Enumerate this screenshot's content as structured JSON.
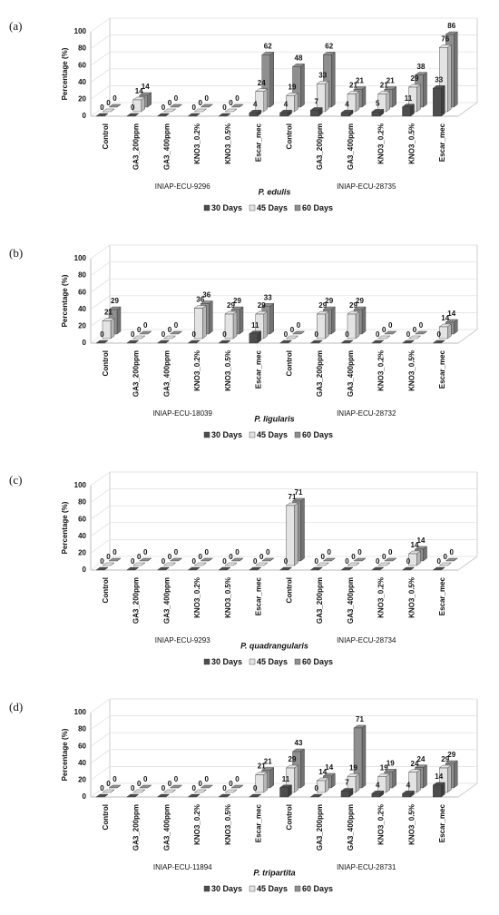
{
  "chart_data": [
    {
      "type": "bar",
      "panel_label": "(a)",
      "ylabel": "Percentage (%)",
      "categories": [
        "Control",
        "GA3_200ppm",
        "GA3_400ppm",
        "KNO3_0.2%",
        "KNO3_0.5%",
        "Escar_mec",
        "Control",
        "GA3_200ppm",
        "GA3_400ppm",
        "KNO3_0.2%",
        "KNO3_0.5%",
        "Escar_mec"
      ],
      "groups": [
        "INIAP-ECU-9296",
        "INIAP-ECU-28735"
      ],
      "species": "P. edulis",
      "ylim": [
        0,
        100
      ],
      "yticks": [
        0,
        20,
        40,
        60,
        80,
        100
      ],
      "series": [
        {
          "name": "30 Days",
          "color": "#4d4d4d",
          "values": [
            0,
            0,
            0,
            0,
            0,
            4,
            4,
            7,
            4,
            5,
            11,
            33
          ]
        },
        {
          "name": "45 Days",
          "color": "#e3e3e3",
          "values": [
            0,
            14,
            0,
            0,
            0,
            24,
            19,
            33,
            21,
            21,
            29,
            76
          ]
        },
        {
          "name": "60 Days",
          "color": "#8f8f8f",
          "values": [
            0,
            14,
            0,
            0,
            0,
            62,
            48,
            62,
            21,
            21,
            38,
            86
          ]
        }
      ]
    },
    {
      "type": "bar",
      "panel_label": "(b)",
      "ylabel": "Percentage (%)",
      "categories": [
        "Control",
        "GA3_200ppm",
        "GA3_400ppm",
        "KNO3_0.2%",
        "KNO3_0.5%",
        "Escar_mec",
        "Control",
        "GA3_200ppm",
        "GA3_400ppm",
        "KNO3_0.2%",
        "KNO3_0.5%",
        "Escar_mec"
      ],
      "groups": [
        "INIAP-ECU-18039",
        "INIAP-ECU-28732"
      ],
      "species": "P. ligularis",
      "ylim": [
        0,
        100
      ],
      "yticks": [
        0,
        20,
        40,
        60,
        80,
        100
      ],
      "series": [
        {
          "name": "30 Days",
          "color": "#4d4d4d",
          "values": [
            0,
            0,
            0,
            0,
            0,
            11,
            0,
            0,
            0,
            0,
            0,
            0
          ]
        },
        {
          "name": "45 Days",
          "color": "#e3e3e3",
          "values": [
            21,
            0,
            0,
            36,
            29,
            29,
            0,
            29,
            29,
            0,
            0,
            14
          ]
        },
        {
          "name": "60 Days",
          "color": "#8f8f8f",
          "values": [
            29,
            0,
            0,
            36,
            29,
            33,
            0,
            29,
            29,
            0,
            0,
            14
          ]
        }
      ]
    },
    {
      "type": "bar",
      "panel_label": "(c)",
      "ylabel": "Percentage (%)",
      "categories": [
        "Control",
        "GA3_200ppm",
        "GA3_400ppm",
        "KNO3_0.2%",
        "KNO3_0.5%",
        "Escar_mec",
        "Control",
        "GA3_200ppm",
        "GA3_400ppm",
        "KNO3_0.2%",
        "KNO3_0.5%",
        "Escar_mec"
      ],
      "groups": [
        "INIAP-ECU-9293",
        "INIAP-ECU-28734"
      ],
      "species": "P. quadrangularis",
      "ylim": [
        0,
        100
      ],
      "yticks": [
        0,
        20,
        40,
        60,
        80,
        100
      ],
      "series": [
        {
          "name": "30 Days",
          "color": "#4d4d4d",
          "values": [
            0,
            0,
            0,
            0,
            0,
            0,
            0,
            0,
            0,
            0,
            0,
            0
          ]
        },
        {
          "name": "45 Days",
          "color": "#e3e3e3",
          "values": [
            0,
            0,
            0,
            0,
            0,
            0,
            71,
            0,
            0,
            0,
            14,
            0
          ]
        },
        {
          "name": "60 Days",
          "color": "#8f8f8f",
          "values": [
            0,
            0,
            0,
            0,
            0,
            0,
            71,
            0,
            0,
            0,
            14,
            0
          ]
        }
      ]
    },
    {
      "type": "bar",
      "panel_label": "(d)",
      "ylabel": "Percentage (%)",
      "categories": [
        "Control",
        "GA3_200ppm",
        "GA3_400ppm",
        "KNO3_0.2%",
        "KNO3_0.5%",
        "Escar_mec",
        "Control",
        "GA3_200ppm",
        "GA3_400ppm",
        "KNO3_0.2%",
        "KNO3_0.5%",
        "Escar_mec"
      ],
      "groups": [
        "INIAP-ECU-11894",
        "INIAP-ECU-28731"
      ],
      "species": "P. tripartita",
      "ylim": [
        0,
        100
      ],
      "yticks": [
        0,
        20,
        40,
        60,
        80,
        100
      ],
      "series": [
        {
          "name": "30 Days",
          "color": "#4d4d4d",
          "values": [
            0,
            0,
            0,
            0,
            0,
            0,
            11,
            0,
            7,
            4,
            4,
            14
          ]
        },
        {
          "name": "45 Days",
          "color": "#e3e3e3",
          "values": [
            0,
            0,
            0,
            0,
            0,
            21,
            29,
            14,
            19,
            19,
            24,
            29
          ]
        },
        {
          "name": "60 Days",
          "color": "#8f8f8f",
          "values": [
            0,
            0,
            0,
            0,
            0,
            21,
            43,
            14,
            71,
            19,
            24,
            29
          ]
        }
      ]
    }
  ]
}
